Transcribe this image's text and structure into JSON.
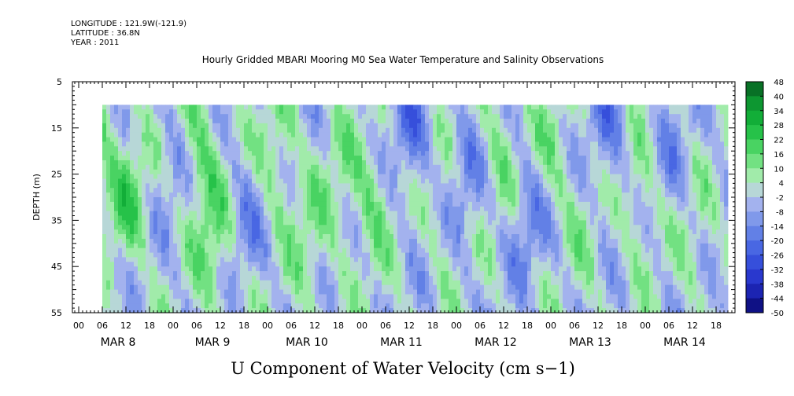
{
  "header": {
    "longitude": "LONGITUDE : 121.9W(-121.9)",
    "latitude": "LATITUDE : 36.8N",
    "year": "YEAR : 2011"
  },
  "chart_data": {
    "type": "heatmap",
    "title": "Hourly Gridded MBARI Mooring M0 Sea Water Temperature and Salinity Observations",
    "xlabel": "U Component of Water Velocity (cm s−1)",
    "ylabel": "DEPTH (m)",
    "y_ticks": [
      "5",
      "15",
      "25",
      "35",
      "45",
      "55"
    ],
    "y_values": [
      5,
      15,
      25,
      35,
      45,
      55
    ],
    "ylim": [
      5,
      55
    ],
    "y_reversed": true,
    "x_hour_labels": [
      "00",
      "06",
      "12",
      "18",
      "00",
      "06",
      "12",
      "18",
      "00",
      "06",
      "12",
      "18",
      "00",
      "06",
      "12",
      "18",
      "00",
      "06",
      "12",
      "18",
      "00",
      "06",
      "12",
      "18",
      "00",
      "06",
      "12",
      "18"
    ],
    "x_day_labels": [
      "MAR  8",
      "MAR  9",
      "MAR 10",
      "MAR 11",
      "MAR 12",
      "MAR 13",
      "MAR 14"
    ],
    "data_depth_range": [
      10,
      55
    ],
    "data_time_start": "MAR 8 06",
    "colorbar": {
      "labels": [
        "48",
        "40",
        "34",
        "28",
        "22",
        "16",
        "10",
        "4",
        "-2",
        "-8",
        "-14",
        "-20",
        "-26",
        "-32",
        "-38",
        "-44",
        "-50"
      ],
      "levels": [
        48,
        40,
        34,
        28,
        22,
        16,
        10,
        4,
        -2,
        -8,
        -14,
        -20,
        -26,
        -32,
        -38,
        -44,
        -50
      ]
    },
    "field_anomalies": [
      {
        "t": 4,
        "d": 18,
        "v": 12
      },
      {
        "t": 12,
        "d": 30,
        "v": 16
      },
      {
        "t": 24,
        "d": 22,
        "v": -8
      },
      {
        "t": 30,
        "d": 20,
        "v": 16
      },
      {
        "t": 34,
        "d": 40,
        "v": 14
      },
      {
        "t": 42,
        "d": 35,
        "v": -10
      },
      {
        "t": 50,
        "d": 20,
        "v": 12
      },
      {
        "t": 58,
        "d": 40,
        "v": 10
      },
      {
        "t": 66,
        "d": 25,
        "v": 8
      },
      {
        "t": 74,
        "d": 30,
        "v": 12
      },
      {
        "t": 84,
        "d": 15,
        "v": -16
      },
      {
        "t": 92,
        "d": 30,
        "v": 6
      },
      {
        "t": 98,
        "d": 25,
        "v": -12
      },
      {
        "t": 106,
        "d": 20,
        "v": 10
      },
      {
        "t": 114,
        "d": 35,
        "v": -12
      },
      {
        "t": 120,
        "d": 20,
        "v": 10
      },
      {
        "t": 128,
        "d": 40,
        "v": 6
      },
      {
        "t": 134,
        "d": 15,
        "v": -14
      },
      {
        "t": 142,
        "d": 30,
        "v": 10
      },
      {
        "t": 150,
        "d": 20,
        "v": -8
      },
      {
        "t": 156,
        "d": 40,
        "v": 6
      }
    ]
  }
}
